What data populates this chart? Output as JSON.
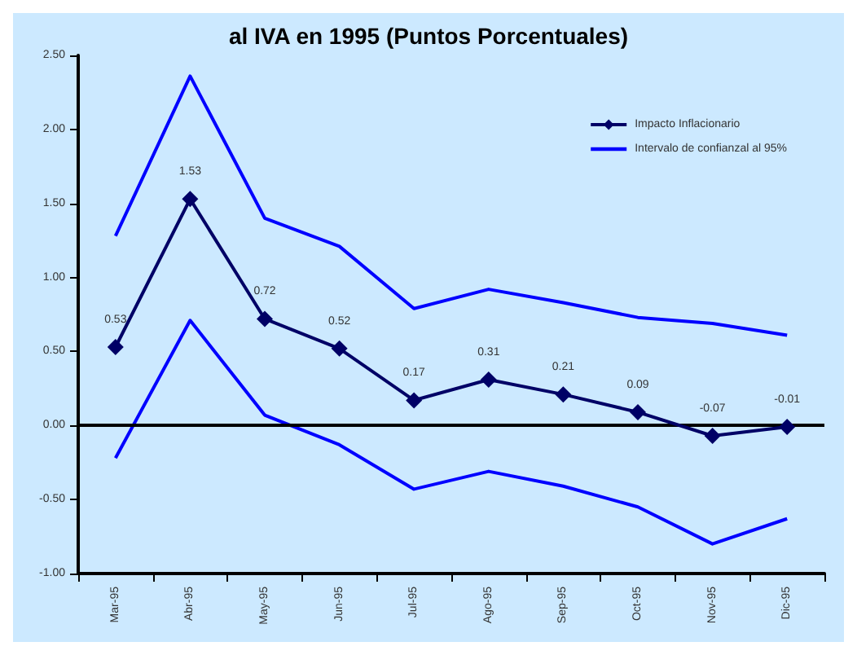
{
  "chart_data": {
    "type": "line",
    "title": "al IVA en 1995 (Puntos Porcentuales)",
    "categories": [
      "Mar-95",
      "Abr-95",
      "May-95",
      "Jun-95",
      "Jul-95",
      "Ago-95",
      "Sep-95",
      "Oct-95",
      "Nov-95",
      "Dic-95"
    ],
    "series": [
      {
        "name": "Impacto Inflacionario",
        "color": "#000066",
        "marker": "diamond",
        "values": [
          0.53,
          1.53,
          0.72,
          0.52,
          0.17,
          0.31,
          0.21,
          0.09,
          -0.07,
          -0.01
        ],
        "value_labels": [
          "0.53",
          "1.53",
          "0.72",
          "0.52",
          "0.17",
          "0.31",
          "0.21",
          "0.09",
          "-0.07",
          "-0.01"
        ]
      },
      {
        "name": "Intervalo de confianzal al 95%",
        "color": "#0000ff",
        "marker": "none",
        "values": [
          1.28,
          2.36,
          1.4,
          1.21,
          0.79,
          0.92,
          0.83,
          0.73,
          0.69,
          0.61
        ]
      },
      {
        "color": "#0000ff",
        "marker": "none",
        "values": [
          -0.22,
          0.71,
          0.07,
          -0.13,
          -0.43,
          -0.31,
          -0.41,
          -0.55,
          -0.8,
          -0.63
        ]
      }
    ],
    "ylim": [
      -1,
      2.5
    ],
    "yticks": [
      {
        "value": -1,
        "label": "-1.00"
      },
      {
        "value": -0.5,
        "label": "-0.50"
      },
      {
        "value": 0,
        "label": "0.00"
      },
      {
        "value": 0.5,
        "label": "0.50"
      },
      {
        "value": 1,
        "label": "1.00"
      },
      {
        "value": 1.5,
        "label": "1.50"
      },
      {
        "value": 2,
        "label": "2.00"
      },
      {
        "value": 2.5,
        "label": "2.50"
      }
    ],
    "ref_lines": [
      {
        "axis": "y",
        "value": 0,
        "color": "#000000"
      }
    ],
    "grid": false,
    "legend": "top right",
    "line_style": "solid"
  }
}
